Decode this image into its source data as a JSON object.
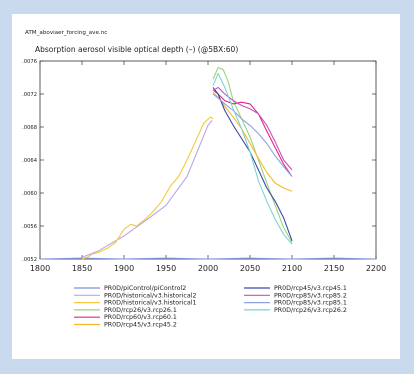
{
  "chart_data": {
    "type": "line",
    "filename": "ATM_aboviaer_forcing_ave.nc",
    "title": "Absorption aerosol visible optical depth (–) (@5BX:60)",
    "xlabel": "",
    "ylabel": "",
    "xlim": [
      1800,
      2200
    ],
    "ylim": [
      0.0052,
      0.0076
    ],
    "x_ticks": [
      1800,
      1850,
      1900,
      1950,
      2000,
      2050,
      2100,
      2150,
      2200
    ],
    "x_tick_labels": [
      "1800",
      "1850",
      "1900",
      "1950",
      "2000",
      "2050",
      "2100",
      "2150",
      "2200"
    ],
    "y_ticks": [
      0.0052,
      0.0056,
      0.006,
      0.0064,
      0.0068,
      0.0072,
      0.0076
    ],
    "y_tick_labels": [
      ".0052",
      ".0056",
      ".0060",
      ".0064",
      ".0068",
      ".0072",
      ".0076"
    ],
    "grid": false,
    "legend_placement": "bottom",
    "series": [
      {
        "name": "PR0D/piControl/piControl2",
        "color": "#7f92d8",
        "x": [
          1800,
          1850,
          1900,
          1950,
          2000,
          2050,
          2100,
          2150,
          2200
        ],
        "y": [
          0.0052,
          0.00521,
          0.0052,
          0.00521,
          0.0052,
          0.00521,
          0.0052,
          0.00521,
          0.0052
        ]
      },
      {
        "name": "PR0D/historical/v3.historical2",
        "color": "#b9a8e6",
        "x": [
          1850,
          1870,
          1900,
          1925,
          1950,
          1975,
          2000,
          2005
        ],
        "y": [
          0.00522,
          0.0053,
          0.00548,
          0.00566,
          0.00585,
          0.0062,
          0.00682,
          0.00688
        ]
      },
      {
        "name": "PR0D/historical/v3.historical1",
        "color": "#f6c93a",
        "x": [
          1850,
          1858,
          1862,
          1870,
          1880,
          1890,
          1900,
          1908,
          1915,
          1925,
          1935,
          1945,
          1955,
          1965,
          1975,
          1985,
          1995,
          2003,
          2006
        ],
        "y": [
          0.0052,
          0.00523,
          0.00526,
          0.00528,
          0.00533,
          0.0054,
          0.00556,
          0.00562,
          0.0056,
          0.00568,
          0.00578,
          0.0059,
          0.00608,
          0.0062,
          0.0064,
          0.00662,
          0.00685,
          0.00692,
          0.0069
        ]
      },
      {
        "name": "PR0D/rcp26/v3.rcp26.1",
        "color": "#9bd37d",
        "x": [
          2006,
          2012,
          2018,
          2024,
          2030,
          2040,
          2050,
          2060,
          2070,
          2080,
          2090,
          2100
        ],
        "y": [
          0.00738,
          0.00752,
          0.0075,
          0.00735,
          0.00712,
          0.0069,
          0.00668,
          0.0064,
          0.00612,
          0.00585,
          0.00558,
          0.0054
        ]
      },
      {
        "name": "PR0D/rcp60/v3.rcp60.1",
        "color": "#e0287e",
        "x": [
          2006,
          2012,
          2020,
          2030,
          2040,
          2050,
          2060,
          2070,
          2080,
          2090,
          2100
        ],
        "y": [
          0.00725,
          0.0072,
          0.00712,
          0.00708,
          0.0071,
          0.00708,
          0.00696,
          0.00675,
          0.00655,
          0.00635,
          0.0062
        ]
      },
      {
        "name": "PR0D/rcp45/v3.rcp45.2",
        "color": "#f9b928",
        "x": [
          2006,
          2012,
          2020,
          2030,
          2040,
          2050,
          2060,
          2070,
          2080,
          2090,
          2100
        ],
        "y": [
          0.00722,
          0.00716,
          0.00705,
          0.00692,
          0.00678,
          0.0066,
          0.00642,
          0.00625,
          0.00612,
          0.00606,
          0.00602
        ]
      },
      {
        "name": "PR0D/rcp45/v3.rcp45.1",
        "color": "#3b4ba8",
        "x": [
          2006,
          2012,
          2020,
          2030,
          2040,
          2050,
          2060,
          2070,
          2080,
          2090,
          2100
        ],
        "y": [
          0.00728,
          0.0072,
          0.007,
          0.00682,
          0.00666,
          0.0065,
          0.00628,
          0.00606,
          0.0059,
          0.0057,
          0.00542
        ]
      },
      {
        "name": "PR0D/rcp85/v3.rcp85.2",
        "color": "#c850c0",
        "x": [
          2006,
          2012,
          2020,
          2030,
          2040,
          2050,
          2060,
          2070,
          2080,
          2090,
          2100
        ],
        "y": [
          0.00724,
          0.00728,
          0.0072,
          0.00712,
          0.00706,
          0.00702,
          0.00696,
          0.00682,
          0.00662,
          0.0064,
          0.00628
        ]
      },
      {
        "name": "PR0D/rcp85/v3.rcp85.1",
        "color": "#8ea4e2",
        "x": [
          2006,
          2012,
          2020,
          2030,
          2040,
          2050,
          2060,
          2070,
          2080,
          2090,
          2100
        ],
        "y": [
          0.0072,
          0.00715,
          0.00708,
          0.007,
          0.0069,
          0.00682,
          0.00672,
          0.0066,
          0.00645,
          0.00632,
          0.0062
        ]
      },
      {
        "name": "PR0D/rcp26/v3.rcp26.2",
        "color": "#7fd3d0",
        "x": [
          2006,
          2012,
          2020,
          2030,
          2040,
          2050,
          2060,
          2070,
          2080,
          2090,
          2100
        ],
        "y": [
          0.0073,
          0.00745,
          0.00728,
          0.00702,
          0.00678,
          0.0065,
          0.00615,
          0.0059,
          0.00568,
          0.0055,
          0.00538
        ]
      }
    ]
  }
}
